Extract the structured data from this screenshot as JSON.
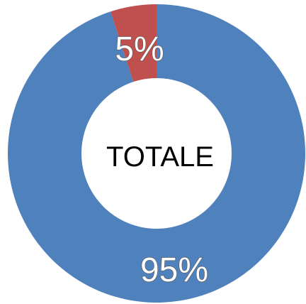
{
  "chart_data": {
    "type": "pie",
    "categories": [
      "",
      ""
    ],
    "values": [
      95,
      5
    ],
    "labels": [
      "95%",
      "5%"
    ],
    "colors": [
      "#4F81BD",
      "#C0504D"
    ],
    "center_text": "TOTALE",
    "legend": false,
    "grid": false
  }
}
